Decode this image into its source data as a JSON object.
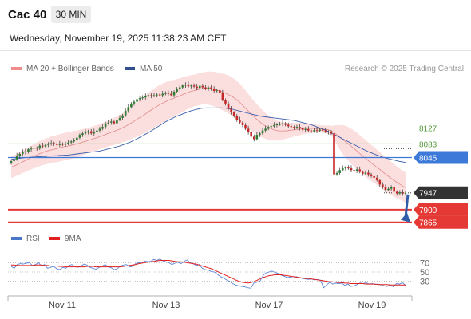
{
  "header": {
    "symbol": "Cac 40",
    "timeframe": "30 MIN"
  },
  "timestamp": "Wednesday, November 19, 2025 11:38:23 AM CET",
  "legend": {
    "bb": "MA 20 + Bollinger Bands",
    "ma50": "MA 50",
    "rsi": "RSI",
    "ma9": "9MA"
  },
  "credit": "Research © 2025 Trading Central",
  "colors": {
    "bollinger": "#f7b6b6",
    "ma20": "#e28a8a",
    "ma50": "#3a5ea8",
    "candle_up": "#2e7d32",
    "candle_down": "#c62828",
    "support": "#e53935",
    "resistance_green": "#8cc474",
    "resistance_blue": "#3d79d8",
    "price": "#333333"
  },
  "chart_data": [
    {
      "type": "candlestick",
      "x_ticks": [
        "Nov 11",
        "Nov 13",
        "Nov 17",
        "Nov 19"
      ],
      "ylim": [
        7840,
        8270
      ],
      "price_levels": [
        {
          "value": 8127,
          "label": "8127",
          "kind": "resistance"
        },
        {
          "value": 8083,
          "label": "8083",
          "kind": "resistance"
        },
        {
          "value": 8045,
          "label": "8045",
          "kind": "pivot"
        },
        {
          "value": 7947,
          "label": "7947",
          "kind": "last"
        },
        {
          "value": 7900,
          "label": "7900",
          "kind": "support"
        },
        {
          "value": 7865,
          "label": "7865",
          "kind": "support"
        }
      ],
      "close": [
        8035,
        8040,
        8050,
        8055,
        8062,
        8060,
        8068,
        8070,
        8072,
        8070,
        8078,
        8076,
        8080,
        8082,
        8085,
        8083,
        8080,
        8083,
        8081,
        8083,
        8087,
        8090,
        8093,
        8100,
        8108,
        8112,
        8115,
        8118,
        8112,
        8117,
        8120,
        8125,
        8130,
        8140,
        8142,
        8145,
        8140,
        8150,
        8155,
        8162,
        8175,
        8185,
        8195,
        8200,
        8207,
        8210,
        8212,
        8215,
        8218,
        8216,
        8218,
        8220,
        8218,
        8222,
        8225,
        8222,
        8218,
        8228,
        8235,
        8240,
        8245,
        8248,
        8243,
        8245,
        8242,
        8238,
        8244,
        8240,
        8236,
        8240,
        8235,
        8230,
        8232,
        8225,
        8205,
        8195,
        8180,
        8170,
        8160,
        8150,
        8142,
        8135,
        8125,
        8115,
        8103,
        8096,
        8108,
        8112,
        8120,
        8125,
        8130,
        8132,
        8135,
        8137,
        8138,
        8140,
        8136,
        8132,
        8130,
        8128,
        8130,
        8126,
        8122,
        8124,
        8120,
        8118,
        8121,
        8119,
        8123,
        8120,
        8117,
        8115,
        8112,
        7998,
        8002,
        8010,
        8015,
        8017,
        8015,
        8010,
        8008,
        8012,
        8005,
        8000,
        8003,
        7998,
        7993,
        7989,
        7982,
        7970,
        7962,
        7955,
        7958,
        7962,
        7950,
        7945,
        7948,
        7945,
        7947
      ],
      "ma20": [
        8018,
        8021,
        8025,
        8029,
        8033,
        8037,
        8041,
        8045,
        8049,
        8052,
        8056,
        8059,
        8062,
        8064,
        8066,
        8068,
        8070,
        8072,
        8074,
        8076,
        8077,
        8079,
        8081,
        8083,
        8085,
        8088,
        8090,
        8093,
        8095,
        8098,
        8100,
        8103,
        8106,
        8109,
        8112,
        8115,
        8118,
        8121,
        8124,
        8128,
        8132,
        8136,
        8141,
        8146,
        8151,
        8156,
        8161,
        8166,
        8172,
        8177,
        8182,
        8187,
        8192,
        8196,
        8200,
        8204,
        8207,
        8210,
        8213,
        8216,
        8220,
        8223,
        8226,
        8229,
        8231,
        8233,
        8235,
        8237,
        8238,
        8238,
        8237,
        8235,
        8233,
        8230,
        8227,
        8224,
        8220,
        8216,
        8211,
        8205,
        8198,
        8190,
        8182,
        8174,
        8165,
        8158,
        8151,
        8144,
        8138,
        8133,
        8128,
        8125,
        8122,
        8120,
        8119,
        8119,
        8119,
        8120,
        8121,
        8122,
        8123,
        8124,
        8125,
        8126,
        8126,
        8126,
        8126,
        8125,
        8125,
        8124,
        8123,
        8122,
        8120,
        8114,
        8108,
        8101,
        8095,
        8089,
        8083,
        8076,
        8070,
        8063,
        8056,
        8049,
        8043,
        8036,
        8030,
        8024,
        8018,
        8012,
        8005,
        7999,
        7993,
        7987,
        7981,
        7976,
        7971,
        7966,
        7962
      ],
      "bb_width": [
        30,
        30,
        30,
        31,
        31,
        32,
        32,
        33,
        34,
        34,
        35,
        35,
        36,
        36,
        37,
        37,
        38,
        38,
        38,
        38,
        38,
        38,
        38,
        37,
        37,
        36,
        36,
        35,
        35,
        35,
        35,
        35,
        35,
        36,
        36,
        37,
        38,
        38,
        39,
        40,
        42,
        43,
        45,
        46,
        48,
        49,
        51,
        52,
        53,
        54,
        54,
        55,
        55,
        54,
        54,
        53,
        52,
        51,
        50,
        49,
        48,
        47,
        46,
        45,
        44,
        44,
        44,
        44,
        45,
        46,
        47,
        48,
        49,
        50,
        51,
        52,
        53,
        53,
        53,
        53,
        52,
        51,
        50,
        48,
        46,
        44,
        42,
        40,
        38,
        36,
        34,
        32,
        30,
        28,
        26,
        24,
        22,
        21,
        20,
        19,
        18,
        17,
        16,
        15,
        14,
        13,
        12,
        11,
        10,
        10,
        11,
        12,
        13,
        20,
        27,
        34,
        40,
        44,
        47,
        49,
        50,
        51,
        51,
        51,
        51,
        51,
        50,
        50,
        49,
        49,
        48,
        48,
        47,
        46,
        45,
        44,
        43,
        42,
        42
      ],
      "ma50": [
        8040,
        8041,
        8042,
        8043,
        8044,
        8045,
        8045,
        8046,
        8046,
        8047,
        8047,
        8048,
        8048,
        8049,
        8049,
        8050,
        8050,
        8051,
        8051,
        8052,
        8052,
        8053,
        8054,
        8055,
        8056,
        8057,
        8058,
        8059,
        8060,
        8061,
        8062,
        8063,
        8065,
        8067,
        8069,
        8071,
        8073,
        8075,
        8077,
        8080,
        8083,
        8086,
        8089,
        8093,
        8097,
        8101,
        8105,
        8110,
        8114,
        8119,
        8124,
        8129,
        8134,
        8139,
        8144,
        8148,
        8152,
        8156,
        8160,
        8163,
        8166,
        8169,
        8172,
        8175,
        8177,
        8179,
        8181,
        8182,
        8183,
        8183,
        8183,
        8183,
        8183,
        8183,
        8183,
        8182,
        8181,
        8180,
        8178,
        8176,
        8174,
        8172,
        8170,
        8168,
        8166,
        8164,
        8162,
        8160,
        8159,
        8158,
        8157,
        8156,
        8155,
        8154,
        8153,
        8152,
        8151,
        8150,
        8149,
        8148,
        8146,
        8144,
        8142,
        8140,
        8138,
        8136,
        8133,
        8130,
        8127,
        8124,
        8121,
        8117,
        8113,
        8109,
        8105,
        8101,
        8097,
        8093,
        8089,
        8085,
        8081,
        8077,
        8073,
        8069,
        8065,
        8061,
        8058,
        8055,
        8052,
        8049,
        8046,
        8044,
        8042,
        8040,
        8038,
        8036,
        8034,
        8033,
        8031
      ],
      "projection": {
        "from": 7947,
        "to": 7865
      }
    },
    {
      "type": "line",
      "series": [
        {
          "name": "RSI",
          "values": [
            62,
            58,
            66,
            68,
            67,
            69,
            70,
            64,
            66,
            70,
            63,
            66,
            58,
            60,
            62,
            57,
            55,
            60,
            58,
            64,
            66,
            62,
            60,
            63,
            67,
            65,
            60,
            58,
            56,
            60,
            63,
            66,
            61,
            59,
            55,
            57,
            63,
            65,
            66,
            61,
            62,
            68,
            70,
            69,
            74,
            72,
            73,
            77,
            75,
            78,
            74,
            72,
            70,
            66,
            69,
            71,
            68,
            73,
            76,
            70,
            68,
            64,
            66,
            58,
            55,
            54,
            51,
            50,
            45,
            40,
            37,
            33,
            30,
            25,
            22,
            20,
            19,
            18,
            16,
            15,
            26,
            28,
            30,
            42,
            48,
            50,
            52,
            49,
            47,
            43,
            41,
            38,
            39,
            37,
            40,
            38,
            36,
            35,
            34,
            35,
            33,
            34,
            32,
            16,
            22,
            28,
            24,
            26,
            25,
            26,
            21,
            24,
            19,
            20,
            23,
            26,
            25,
            27,
            24,
            25,
            23,
            24,
            22,
            20,
            19,
            22,
            18,
            25,
            24,
            27,
            21
          ]
        },
        {
          "name": "9MA",
          "values": [
            65,
            65,
            64,
            64,
            64,
            64,
            64,
            64,
            65,
            65,
            65,
            64,
            64,
            63,
            63,
            63,
            62,
            62,
            61,
            61,
            61,
            61,
            61,
            61,
            61,
            62,
            62,
            62,
            61,
            61,
            61,
            61,
            61,
            61,
            61,
            61,
            61,
            62,
            63,
            64,
            65,
            66,
            68,
            69,
            70,
            71,
            72,
            73,
            74,
            75,
            75,
            75,
            75,
            74,
            73,
            72,
            72,
            71,
            70,
            69,
            68,
            67,
            65,
            63,
            61,
            59,
            57,
            54,
            51,
            48,
            45,
            42,
            39,
            36,
            33,
            30,
            28,
            27,
            26,
            27,
            29,
            32,
            35,
            38,
            40,
            42,
            43,
            44,
            44,
            44,
            43,
            42,
            41,
            40,
            39,
            38,
            37,
            36,
            36,
            35,
            34,
            33,
            32,
            31,
            30,
            29,
            29,
            28,
            27,
            27,
            26,
            26,
            25,
            25,
            25,
            25,
            25,
            24,
            24,
            24,
            24,
            23,
            23,
            23,
            23,
            22,
            22,
            22,
            22,
            22,
            22
          ]
        }
      ],
      "y_ticks": [
        "70",
        "50",
        "30"
      ],
      "ylim": [
        0,
        100
      ],
      "levels": [
        70,
        50,
        30
      ]
    }
  ]
}
